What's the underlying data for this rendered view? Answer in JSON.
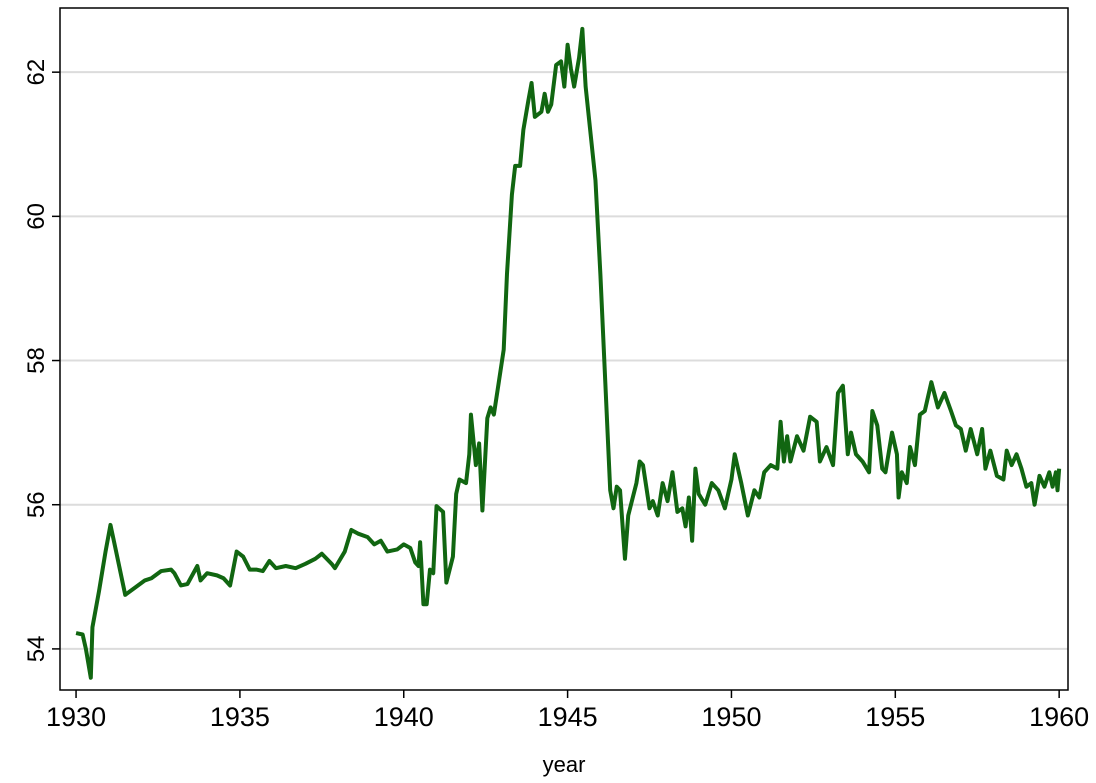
{
  "chart_data": {
    "type": "line",
    "x_label": "year",
    "color": "#116611",
    "grid": true,
    "xlim": [
      1929.51,
      1960.27
    ],
    "ylim": [
      53.43,
      62.89
    ],
    "xticks": [
      1930,
      1935,
      1940,
      1945,
      1950,
      1955,
      1960
    ],
    "yticks": [
      54,
      56,
      58,
      60,
      62
    ],
    "x": [
      1930.0,
      1930.2,
      1930.3,
      1930.45,
      1930.5,
      1930.7,
      1930.9,
      1931.05,
      1931.2,
      1931.5,
      1931.8,
      1932.1,
      1932.3,
      1932.6,
      1932.9,
      1933.0,
      1933.2,
      1933.4,
      1933.7,
      1933.8,
      1934.0,
      1934.3,
      1934.5,
      1934.7,
      1934.9,
      1935.1,
      1935.3,
      1935.5,
      1935.7,
      1935.9,
      1936.1,
      1936.4,
      1936.7,
      1937.0,
      1937.3,
      1937.5,
      1937.8,
      1937.9,
      1938.2,
      1938.4,
      1938.6,
      1938.9,
      1939.1,
      1939.3,
      1939.5,
      1939.8,
      1940.0,
      1940.2,
      1940.35,
      1940.45,
      1940.5,
      1940.6,
      1940.7,
      1940.8,
      1940.9,
      1941.0,
      1941.2,
      1941.3,
      1941.5,
      1941.6,
      1941.7,
      1941.9,
      1942.0,
      1942.05,
      1942.2,
      1942.3,
      1942.4,
      1942.55,
      1942.65,
      1942.75,
      1942.9,
      1943.05,
      1943.15,
      1943.3,
      1943.4,
      1943.55,
      1943.65,
      1943.8,
      1943.9,
      1944.0,
      1944.2,
      1944.3,
      1944.4,
      1944.5,
      1944.65,
      1944.8,
      1944.9,
      1945.0,
      1945.1,
      1945.2,
      1945.35,
      1945.45,
      1945.55,
      1945.7,
      1945.85,
      1946.0,
      1946.15,
      1946.3,
      1946.4,
      1946.5,
      1946.6,
      1946.75,
      1946.85,
      1947.1,
      1947.2,
      1947.3,
      1947.5,
      1947.6,
      1947.75,
      1947.9,
      1948.05,
      1948.2,
      1948.35,
      1948.5,
      1948.6,
      1948.7,
      1948.8,
      1948.9,
      1949.0,
      1949.2,
      1949.4,
      1949.6,
      1949.8,
      1950.0,
      1950.1,
      1950.3,
      1950.5,
      1950.7,
      1950.85,
      1951.0,
      1951.2,
      1951.4,
      1951.5,
      1951.6,
      1951.7,
      1951.8,
      1952.0,
      1952.2,
      1952.4,
      1952.6,
      1952.7,
      1952.9,
      1953.1,
      1953.25,
      1953.4,
      1953.55,
      1953.65,
      1953.8,
      1954.0,
      1954.2,
      1954.3,
      1954.45,
      1954.6,
      1954.7,
      1954.9,
      1955.05,
      1955.1,
      1955.2,
      1955.35,
      1955.45,
      1955.6,
      1955.75,
      1955.9,
      1956.1,
      1956.3,
      1956.5,
      1956.7,
      1956.85,
      1957.0,
      1957.15,
      1957.3,
      1957.5,
      1957.65,
      1957.75,
      1957.9,
      1958.1,
      1958.3,
      1958.4,
      1958.55,
      1958.7,
      1958.85,
      1959.0,
      1959.15,
      1959.25,
      1959.4,
      1959.55,
      1959.7,
      1959.8,
      1959.9,
      1959.95,
      1960.0
    ],
    "values": [
      54.22,
      54.2,
      54.0,
      53.6,
      54.3,
      54.8,
      55.35,
      55.72,
      55.4,
      54.75,
      54.85,
      54.95,
      54.98,
      55.08,
      55.1,
      55.05,
      54.88,
      54.9,
      55.15,
      54.95,
      55.05,
      55.02,
      54.98,
      54.88,
      55.35,
      55.28,
      55.1,
      55.1,
      55.08,
      55.22,
      55.12,
      55.15,
      55.12,
      55.18,
      55.25,
      55.32,
      55.18,
      55.12,
      55.35,
      55.65,
      55.6,
      55.55,
      55.45,
      55.5,
      55.35,
      55.38,
      55.45,
      55.4,
      55.2,
      55.15,
      55.48,
      54.62,
      54.62,
      55.1,
      55.05,
      55.98,
      55.9,
      54.92,
      55.28,
      56.15,
      56.35,
      56.3,
      56.7,
      57.25,
      56.55,
      56.85,
      55.92,
      57.2,
      57.35,
      57.25,
      57.7,
      58.15,
      59.2,
      60.3,
      60.7,
      60.7,
      61.2,
      61.6,
      61.85,
      61.38,
      61.45,
      61.7,
      61.45,
      61.55,
      62.1,
      62.15,
      61.8,
      62.38,
      62.05,
      61.8,
      62.2,
      62.6,
      61.8,
      61.15,
      60.5,
      59.2,
      57.7,
      56.2,
      55.95,
      56.25,
      56.2,
      55.25,
      55.85,
      56.3,
      56.6,
      56.55,
      55.95,
      56.05,
      55.85,
      56.3,
      56.05,
      56.45,
      55.9,
      55.95,
      55.7,
      56.1,
      55.5,
      56.5,
      56.15,
      56.0,
      56.3,
      56.2,
      55.95,
      56.35,
      56.7,
      56.3,
      55.85,
      56.2,
      56.1,
      56.45,
      56.55,
      56.5,
      57.15,
      56.6,
      56.95,
      56.6,
      56.95,
      56.75,
      57.22,
      57.15,
      56.6,
      56.8,
      56.55,
      57.55,
      57.65,
      56.7,
      57.0,
      56.7,
      56.6,
      56.45,
      57.3,
      57.1,
      56.5,
      56.45,
      57.0,
      56.7,
      56.1,
      56.45,
      56.3,
      56.8,
      56.55,
      57.25,
      57.3,
      57.7,
      57.35,
      57.55,
      57.3,
      57.1,
      57.05,
      56.75,
      57.05,
      56.7,
      57.05,
      56.5,
      56.75,
      56.4,
      56.35,
      56.75,
      56.55,
      56.7,
      56.5,
      56.25,
      56.3,
      56.0,
      56.4,
      56.25,
      56.45,
      56.25,
      56.45,
      56.2,
      56.5
    ]
  }
}
